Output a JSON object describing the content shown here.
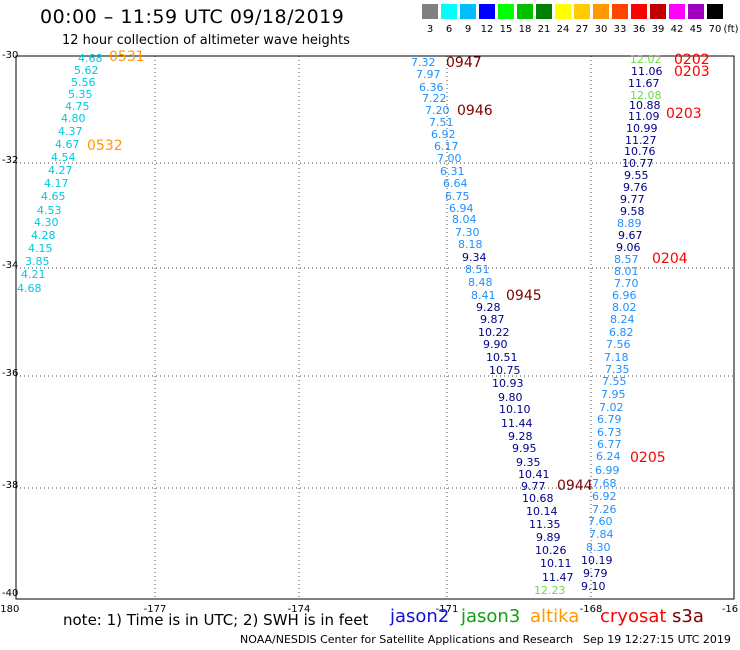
{
  "header": {
    "title": "00:00 – 11:59 UTC 09/18/2019",
    "subtitle": "12 hour collection of altimeter wave heights"
  },
  "legend": {
    "unit": "(ft)",
    "items": [
      {
        "label": "3",
        "color": "#808080"
      },
      {
        "label": "6",
        "color": "#00ffff"
      },
      {
        "label": "9",
        "color": "#00bfff"
      },
      {
        "label": "12",
        "color": "#0000ff"
      },
      {
        "label": "15",
        "color": "#00ff00"
      },
      {
        "label": "18",
        "color": "#00c000"
      },
      {
        "label": "21",
        "color": "#008000"
      },
      {
        "label": "24",
        "color": "#ffff00"
      },
      {
        "label": "27",
        "color": "#ffcc00"
      },
      {
        "label": "30",
        "color": "#ff9900"
      },
      {
        "label": "33",
        "color": "#ff4400"
      },
      {
        "label": "36",
        "color": "#ff0000"
      },
      {
        "label": "39",
        "color": "#c00000"
      },
      {
        "label": "42",
        "color": "#ff00ff"
      },
      {
        "label": "45",
        "color": "#a000c0"
      },
      {
        "label": "70",
        "color": "#000000"
      }
    ]
  },
  "map": {
    "lon_range": [
      -180,
      -166
    ],
    "lat_range": [
      -40,
      -30
    ],
    "lon_ticks": [
      "-180",
      "-177",
      "-174",
      "-171",
      "-168",
      "-16"
    ],
    "lat_ticks": [
      "-30",
      "-32",
      "-34",
      "-36",
      "-38",
      "-40"
    ],
    "colors": {
      "lt": "#00c8e0",
      "md": "#1e90ff",
      "dk": "#00008b",
      "gr": "#66dd44",
      "time_orange": "#ff9900",
      "time_maroon": "#800000",
      "time_red": "#ff0000"
    },
    "tracks": [
      {
        "name": "track-1",
        "observations": [
          {
            "v": "4.68",
            "c": "lt"
          },
          {
            "v": "5.62",
            "c": "lt"
          },
          {
            "v": "5.56",
            "c": "lt"
          },
          {
            "v": "5.35",
            "c": "lt"
          },
          {
            "v": "4.75",
            "c": "lt"
          },
          {
            "v": "4.80",
            "c": "lt"
          },
          {
            "v": "4.37",
            "c": "lt"
          },
          {
            "v": "4.67",
            "c": "lt"
          },
          {
            "v": "4.54",
            "c": "lt"
          },
          {
            "v": "4.27",
            "c": "lt"
          },
          {
            "v": "4.17",
            "c": "lt"
          },
          {
            "v": "4.65",
            "c": "lt"
          },
          {
            "v": "4.53",
            "c": "lt"
          },
          {
            "v": "4.30",
            "c": "lt"
          },
          {
            "v": "4.28",
            "c": "lt"
          },
          {
            "v": "4.15",
            "c": "lt"
          },
          {
            "v": "3.85",
            "c": "lt"
          },
          {
            "v": "4.21",
            "c": "lt"
          },
          {
            "v": "4.68",
            "c": "lt"
          }
        ]
      },
      {
        "name": "track-2",
        "observations": [
          {
            "v": "7.32",
            "c": "md"
          },
          {
            "v": "7.97",
            "c": "md"
          },
          {
            "v": "6.36",
            "c": "md"
          },
          {
            "v": "7.22",
            "c": "md"
          },
          {
            "v": "7.20",
            "c": "md"
          },
          {
            "v": "7.51",
            "c": "md"
          },
          {
            "v": "6.92",
            "c": "md"
          },
          {
            "v": "6.17",
            "c": "md"
          },
          {
            "v": "7.00",
            "c": "md"
          },
          {
            "v": "6.31",
            "c": "md"
          },
          {
            "v": "6.64",
            "c": "md"
          },
          {
            "v": "6.75",
            "c": "md"
          },
          {
            "v": "6.94",
            "c": "md"
          },
          {
            "v": "8.04",
            "c": "md"
          },
          {
            "v": "7.30",
            "c": "md"
          },
          {
            "v": "8.18",
            "c": "md"
          },
          {
            "v": "9.34",
            "c": "dk"
          },
          {
            "v": "8.51",
            "c": "md"
          },
          {
            "v": "8.48",
            "c": "md"
          },
          {
            "v": "8.41",
            "c": "md"
          },
          {
            "v": "9.28",
            "c": "dk"
          },
          {
            "v": "9.87",
            "c": "dk"
          },
          {
            "v": "10.22",
            "c": "dk"
          },
          {
            "v": "9.90",
            "c": "dk"
          },
          {
            "v": "10.51",
            "c": "dk"
          },
          {
            "v": "10.75",
            "c": "dk"
          },
          {
            "v": "10.93",
            "c": "dk"
          },
          {
            "v": "9.80",
            "c": "dk"
          },
          {
            "v": "10.10",
            "c": "dk"
          },
          {
            "v": "11.44",
            "c": "dk"
          },
          {
            "v": "9.28",
            "c": "dk"
          },
          {
            "v": "9.95",
            "c": "dk"
          },
          {
            "v": "9.35",
            "c": "dk"
          },
          {
            "v": "10.41",
            "c": "dk"
          },
          {
            "v": "9.77",
            "c": "dk"
          },
          {
            "v": "10.68",
            "c": "dk"
          },
          {
            "v": "10.14",
            "c": "dk"
          },
          {
            "v": "11.35",
            "c": "dk"
          },
          {
            "v": "9.89",
            "c": "dk"
          },
          {
            "v": "10.26",
            "c": "dk"
          },
          {
            "v": "10.11",
            "c": "dk"
          },
          {
            "v": "11.47",
            "c": "dk"
          },
          {
            "v": "12.23",
            "c": "gr"
          }
        ]
      },
      {
        "name": "track-3",
        "observations": [
          {
            "v": "12.02",
            "c": "gr"
          },
          {
            "v": "11.06",
            "c": "dk"
          },
          {
            "v": "11.67",
            "c": "dk"
          },
          {
            "v": "12.08",
            "c": "gr"
          },
          {
            "v": "10.88",
            "c": "dk"
          },
          {
            "v": "11.09",
            "c": "dk"
          },
          {
            "v": "10.99",
            "c": "dk"
          },
          {
            "v": "11.27",
            "c": "dk"
          },
          {
            "v": "10.76",
            "c": "dk"
          },
          {
            "v": "10.77",
            "c": "dk"
          },
          {
            "v": "9.55",
            "c": "dk"
          },
          {
            "v": "9.76",
            "c": "dk"
          },
          {
            "v": "9.77",
            "c": "dk"
          },
          {
            "v": "9.58",
            "c": "dk"
          },
          {
            "v": "8.89",
            "c": "md"
          },
          {
            "v": "9.67",
            "c": "dk"
          },
          {
            "v": "9.06",
            "c": "dk"
          },
          {
            "v": "8.57",
            "c": "md"
          },
          {
            "v": "8.01",
            "c": "md"
          },
          {
            "v": "7.70",
            "c": "md"
          },
          {
            "v": "6.96",
            "c": "md"
          },
          {
            "v": "8.02",
            "c": "md"
          },
          {
            "v": "8.24",
            "c": "md"
          },
          {
            "v": "6.82",
            "c": "md"
          },
          {
            "v": "7.56",
            "c": "md"
          },
          {
            "v": "7.18",
            "c": "md"
          },
          {
            "v": "7.35",
            "c": "md"
          },
          {
            "v": "7.55",
            "c": "md"
          },
          {
            "v": "7.95",
            "c": "md"
          },
          {
            "v": "7.02",
            "c": "md"
          },
          {
            "v": "6.79",
            "c": "md"
          },
          {
            "v": "6.73",
            "c": "md"
          },
          {
            "v": "6.77",
            "c": "md"
          },
          {
            "v": "6.24",
            "c": "md"
          },
          {
            "v": "6.99",
            "c": "md"
          },
          {
            "v": "7.68",
            "c": "md"
          },
          {
            "v": "6.92",
            "c": "md"
          },
          {
            "v": "7.26",
            "c": "md"
          },
          {
            "v": "7.60",
            "c": "md"
          },
          {
            "v": "7.84",
            "c": "md"
          },
          {
            "v": "8.30",
            "c": "md"
          },
          {
            "v": "10.19",
            "c": "dk"
          },
          {
            "v": "9.79",
            "c": "dk"
          },
          {
            "v": "9.10",
            "c": "dk"
          }
        ]
      }
    ],
    "time_labels": [
      {
        "text": "0531",
        "c": "time_orange"
      },
      {
        "text": "0532",
        "c": "time_orange"
      },
      {
        "text": "0947",
        "c": "time_maroon"
      },
      {
        "text": "0946",
        "c": "time_maroon"
      },
      {
        "text": "0945",
        "c": "time_maroon"
      },
      {
        "text": "0944",
        "c": "time_maroon"
      },
      {
        "text": "0202",
        "c": "time_red"
      },
      {
        "text": "0203",
        "c": "time_red"
      },
      {
        "text": "0203",
        "c": "time_red"
      },
      {
        "text": "0204",
        "c": "time_red"
      },
      {
        "text": "0205",
        "c": "time_red"
      }
    ]
  },
  "footer": {
    "note": "note:  1) Time is in UTC;  2) SWH is in feet",
    "satellites": [
      {
        "name": "jason2",
        "color": "#1010dd"
      },
      {
        "name": "jason3",
        "color": "#10a010"
      },
      {
        "name": "altika",
        "color": "#ff9900"
      },
      {
        "name": "cryosat",
        "color": "#ff0000"
      },
      {
        "name": "s3a",
        "color": "#800000"
      }
    ],
    "credit": "NOAA/NESDIS Center for Satellite Applications and Research",
    "stamp": "Sep 19 12:27:15 UTC 2019"
  }
}
